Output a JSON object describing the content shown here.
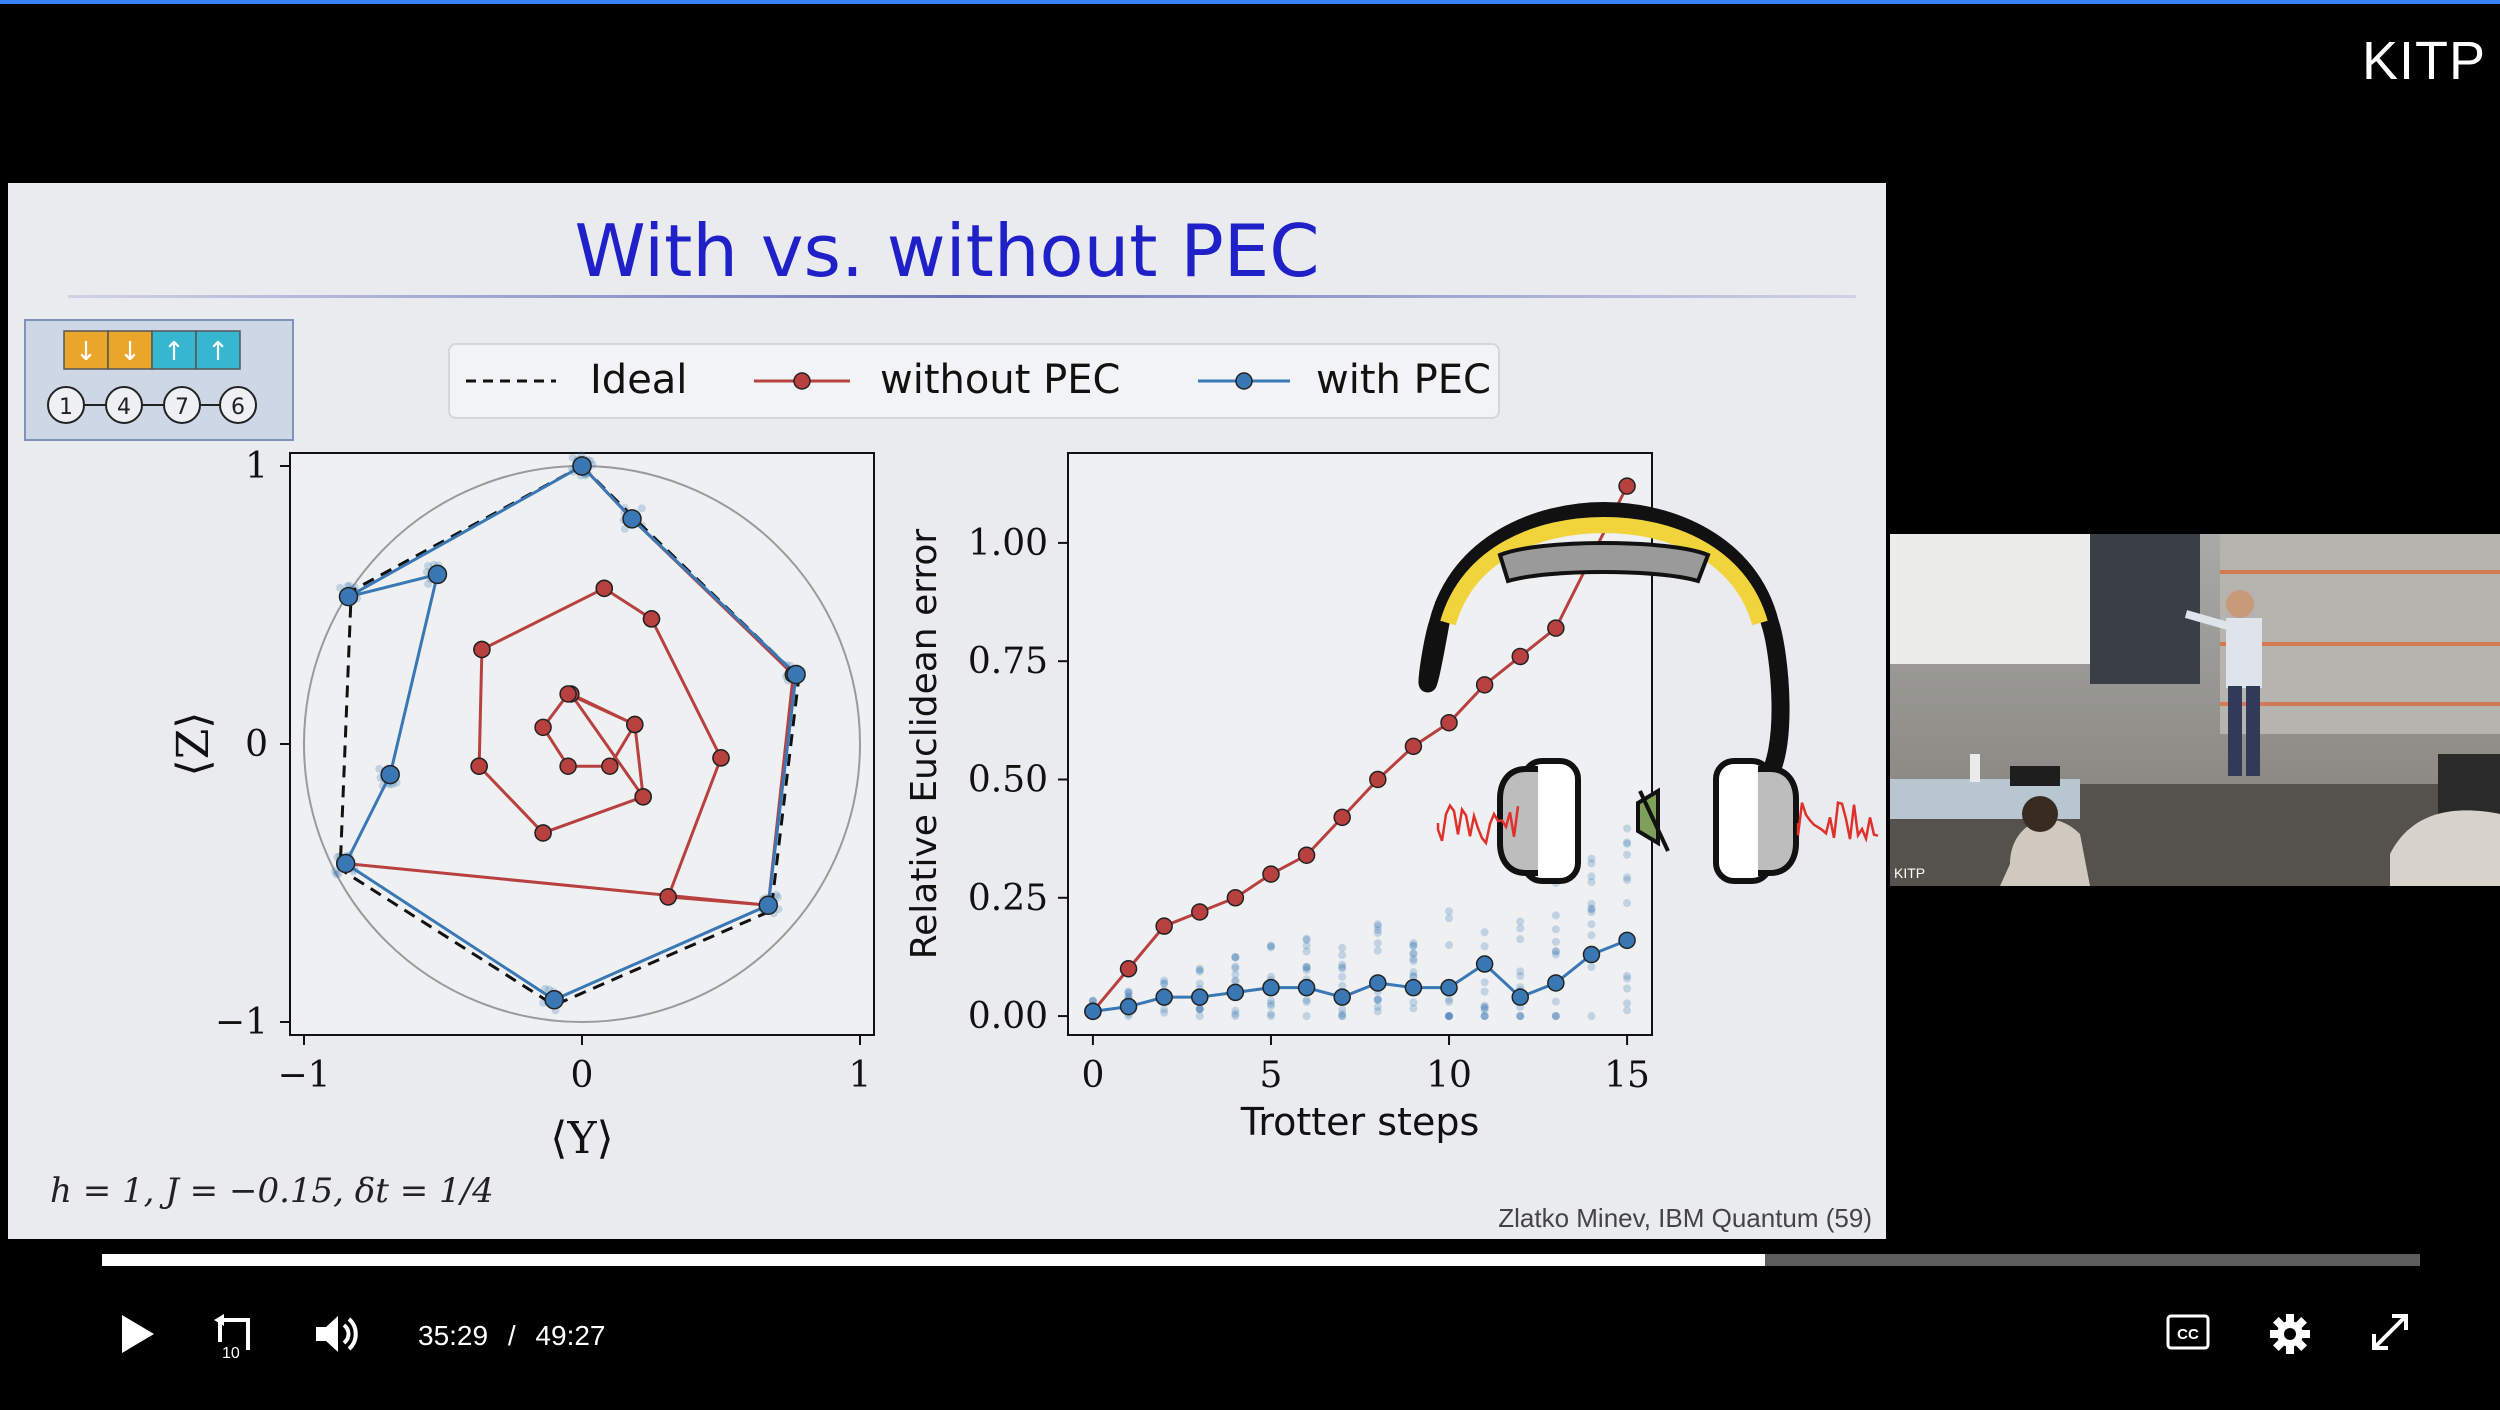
{
  "player": {
    "channel_logo": "KITP",
    "current_time": "35:29",
    "separator": "/",
    "duration": "49:27",
    "progress_fraction": 0.7176,
    "icons": [
      "play-icon",
      "rewind-10-icon",
      "volume-icon",
      "closed-captions-icon",
      "settings-gear-icon",
      "fullscreen-icon"
    ],
    "accent_color": "#3b82f6",
    "cc_label": "CC",
    "rewind_label": "10"
  },
  "slide": {
    "title": "With vs. without PEC",
    "title_color": "#2020c8",
    "qubit_arrows": [
      "↓",
      "↓",
      "↑",
      "↑"
    ],
    "qubit_numbers": [
      "1",
      "4",
      "7",
      "6"
    ],
    "parameters": "h = 1, J = −0.15, δt = 1/4",
    "attribution": "Zlatko Minev, IBM Quantum (59)",
    "legend": [
      "Ideal",
      "without PEC",
      "with PEC"
    ],
    "colors": {
      "ideal": "#111111",
      "without_pec": "#b8413f",
      "with_pec": "#3a78b5"
    }
  },
  "webcam": {
    "watermark": "KITP"
  },
  "chart_data": [
    {
      "type": "scatter",
      "xlabel": "⟨Y⟩",
      "ylabel": "⟨Z⟩",
      "xlim": [
        -1,
        1
      ],
      "ylim": [
        -1,
        1
      ],
      "xticks": [
        "−1",
        "0",
        "1"
      ],
      "yticks": [
        "−1",
        "0",
        "1"
      ],
      "series": [
        {
          "name": "without PEC",
          "points": [
            [
              0,
              1
            ],
            [
              0.18,
              0.81
            ],
            [
              0.76,
              0.25
            ],
            [
              0.67,
              -0.58
            ],
            [
              0.31,
              -0.55
            ],
            [
              0.5,
              -0.05
            ],
            [
              0.25,
              0.45
            ],
            [
              0.08,
              0.56
            ],
            [
              -0.36,
              0.34
            ],
            [
              -0.37,
              -0.08
            ],
            [
              -0.14,
              -0.32
            ],
            [
              0.22,
              -0.19
            ],
            [
              -0.04,
              0.18
            ],
            [
              0.19,
              0.07
            ],
            [
              0.1,
              -0.08
            ],
            [
              -0.05,
              -0.08
            ],
            [
              -0.14,
              0.06
            ],
            [
              -0.05,
              0.18
            ],
            [
              0.19,
              0.07
            ],
            [
              0.22,
              -0.19
            ],
            [
              -0.14,
              -0.32
            ],
            [
              -0.37,
              -0.08
            ],
            [
              -0.36,
              0.34
            ],
            [
              0.08,
              0.56
            ],
            [
              0.25,
              0.45
            ],
            [
              0.5,
              -0.05
            ],
            [
              0.31,
              -0.55
            ],
            [
              0.67,
              -0.58
            ],
            [
              -0.85,
              -0.43
            ]
          ]
        },
        {
          "name": "with PEC",
          "points": [
            [
              0,
              1
            ],
            [
              0.18,
              0.81
            ],
            [
              0.77,
              0.25
            ],
            [
              0.67,
              -0.58
            ],
            [
              -0.1,
              -0.92
            ],
            [
              -0.85,
              -0.43
            ],
            [
              -0.69,
              -0.11
            ],
            [
              -0.52,
              0.61
            ],
            [
              -0.84,
              0.53
            ],
            [
              0.0,
              1.0
            ]
          ]
        },
        {
          "name": "Ideal",
          "points": [
            [
              0,
              1
            ],
            [
              0.2,
              0.8
            ],
            [
              0.78,
              0.24
            ],
            [
              0.68,
              -0.6
            ],
            [
              -0.1,
              -0.94
            ],
            [
              -0.87,
              -0.45
            ],
            [
              -0.83,
              0.55
            ],
            [
              0,
              1
            ]
          ]
        }
      ]
    },
    {
      "type": "line",
      "xlabel": "Trotter steps",
      "ylabel": "Relative Euclidean error",
      "xlim": [
        -0.7,
        15.7
      ],
      "ylim": [
        -0.04,
        1.19
      ],
      "xticks": [
        "0",
        "5",
        "10",
        "15"
      ],
      "yticks": [
        "0.00",
        "0.25",
        "0.50",
        "0.75",
        "1.00"
      ],
      "x": [
        0,
        1,
        2,
        3,
        4,
        5,
        6,
        7,
        8,
        9,
        10,
        11,
        12,
        13,
        14,
        15
      ],
      "series": [
        {
          "name": "without PEC",
          "values": [
            0.01,
            0.1,
            0.19,
            0.22,
            0.25,
            0.3,
            0.34,
            0.42,
            0.5,
            0.57,
            0.62,
            0.7,
            0.76,
            0.82,
            0.97,
            1.12
          ]
        },
        {
          "name": "with PEC",
          "values": [
            0.01,
            0.02,
            0.04,
            0.04,
            0.05,
            0.06,
            0.06,
            0.04,
            0.07,
            0.06,
            0.06,
            0.11,
            0.04,
            0.07,
            0.13,
            0.16
          ]
        }
      ]
    }
  ]
}
